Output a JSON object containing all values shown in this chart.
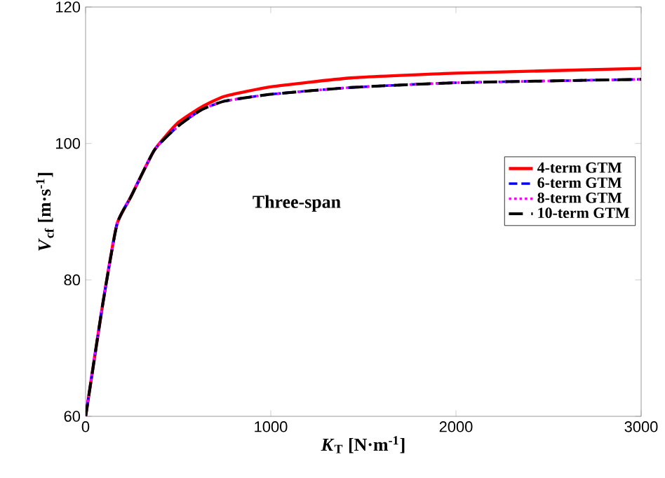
{
  "chart_data": {
    "type": "line",
    "xlabel": "*K*$_{T}$ [N·m$^{-1}$]",
    "ylabel": "*V*$_{cf}$ [m·s$^{-1}$]",
    "annotations": [
      "Three-span"
    ],
    "x": [
      0,
      5,
      93,
      169,
      245,
      371,
      498,
      624,
      750,
      1000,
      1432,
      2000,
      3000
    ],
    "series": [
      {
        "name": "4-term GTM",
        "color": "#ff0000",
        "line_style": "solid",
        "values": [
          60,
          60.8,
          76.5,
          88.1,
          92.2,
          99.0,
          103.0,
          105.3,
          106.9,
          108.3,
          109.6,
          110.3,
          111.0
        ]
      },
      {
        "name": "6-term GTM",
        "color": "#0000ff",
        "line_style": "dashed",
        "values": [
          60,
          60.8,
          76.5,
          88.1,
          92.2,
          99.0,
          102.5,
          104.9,
          106.2,
          107.2,
          108.2,
          108.9,
          109.4
        ]
      },
      {
        "name": "8-term GTM",
        "color": "#ff00ff",
        "line_style": "dotted",
        "values": [
          60,
          60.8,
          76.5,
          88.1,
          92.2,
          99.0,
          102.5,
          104.9,
          106.2,
          107.2,
          108.2,
          108.9,
          109.4
        ]
      },
      {
        "name": "10-term GTM",
        "color": "#000000",
        "line_style": "longdashed",
        "values": [
          60,
          60.8,
          76.5,
          88.1,
          92.2,
          99.0,
          102.5,
          104.9,
          106.2,
          107.2,
          108.2,
          108.9,
          109.4
        ]
      }
    ],
    "xlim": [
      0,
      3000
    ],
    "ylim": [
      60,
      120
    ],
    "xticks": [
      0,
      1000,
      2000,
      3000
    ],
    "yticks": [
      60,
      80,
      100,
      120
    ],
    "grid": false,
    "legend": "right"
  }
}
